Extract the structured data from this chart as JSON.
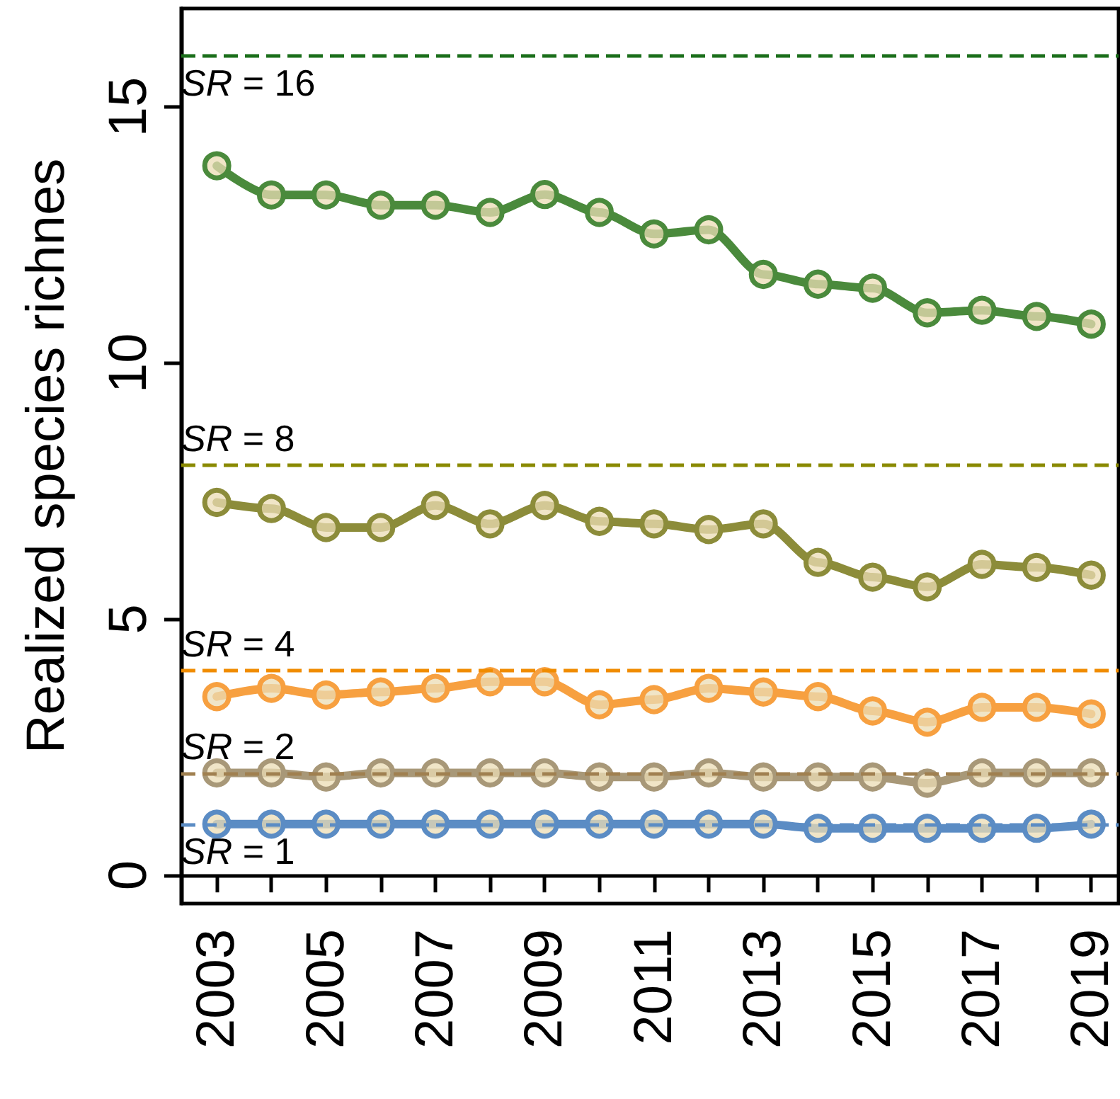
{
  "chart_data": {
    "type": "line",
    "ylabel": "Realized species richnes",
    "x": [
      2003,
      2004,
      2005,
      2006,
      2007,
      2008,
      2009,
      2010,
      2011,
      2012,
      2013,
      2014,
      2015,
      2016,
      2017,
      2018,
      2019
    ],
    "series": [
      {
        "color": "#4a8a3c",
        "values": [
          13.85,
          13.28,
          13.28,
          13.08,
          13.08,
          12.94,
          13.29,
          12.94,
          12.52,
          12.6,
          11.73,
          11.54,
          11.46,
          10.98,
          11.03,
          10.91,
          10.76
        ]
      },
      {
        "color": "#8c8c3a",
        "values": [
          7.28,
          7.16,
          6.79,
          6.79,
          7.22,
          6.86,
          7.22,
          6.91,
          6.86,
          6.75,
          6.86,
          6.11,
          5.82,
          5.63,
          6.07,
          6.01,
          5.86
        ]
      },
      {
        "color": "#f7a040",
        "values": [
          3.49,
          3.65,
          3.52,
          3.58,
          3.65,
          3.78,
          3.78,
          3.33,
          3.43,
          3.65,
          3.58,
          3.49,
          3.21,
          2.99,
          3.28,
          3.28,
          3.15
        ]
      },
      {
        "color": "#a89878",
        "values": [
          2,
          2,
          1.92,
          2,
          2,
          2,
          2,
          1.92,
          1.92,
          2,
          1.92,
          1.92,
          1.92,
          1.8,
          2,
          2,
          2
        ]
      },
      {
        "color": "#5b8cc4",
        "values": [
          1,
          1,
          1,
          1,
          1,
          1,
          1,
          1,
          1,
          1,
          1,
          0.92,
          0.92,
          0.92,
          0.92,
          0.92,
          1
        ]
      }
    ],
    "xlim": [
      2002.35,
      2019.5
    ],
    "xticks": [
      2003,
      {
        "value": 2004,
        "label": null
      },
      2005,
      {
        "value": 2006,
        "label": null
      },
      2007,
      {
        "value": 2008,
        "label": null
      },
      2009,
      {
        "value": 2010,
        "label": null
      },
      2011,
      {
        "value": 2012,
        "label": null
      },
      2013,
      {
        "value": 2014,
        "label": null
      },
      2015,
      {
        "value": 2016,
        "label": null
      },
      2017,
      {
        "value": 2018,
        "label": null
      },
      2019
    ],
    "ylim": [
      -0.55,
      16.92
    ],
    "yticks": [
      0,
      5,
      10,
      15
    ],
    "ref_lines": [
      {
        "axis": "y",
        "value": 16,
        "label": "SR = 16",
        "color": "#1a6e1a",
        "line_style": "dashed"
      },
      {
        "axis": "y",
        "value": 8,
        "label": "SR = 8",
        "color": "#8a8a00",
        "line_style": "dashed"
      },
      {
        "axis": "y",
        "value": 4,
        "label": "SR = 4",
        "color": "#f08c00",
        "line_style": "dashed"
      },
      {
        "axis": "y",
        "value": 2,
        "label": "SR = 2",
        "color": "#a08050",
        "line_style": "dashed"
      },
      {
        "axis": "y",
        "value": 1,
        "label": "SR = 1",
        "color": "#5b8cc4",
        "line_style": "dashed"
      }
    ],
    "marker": "circle",
    "line_style": "solid"
  }
}
